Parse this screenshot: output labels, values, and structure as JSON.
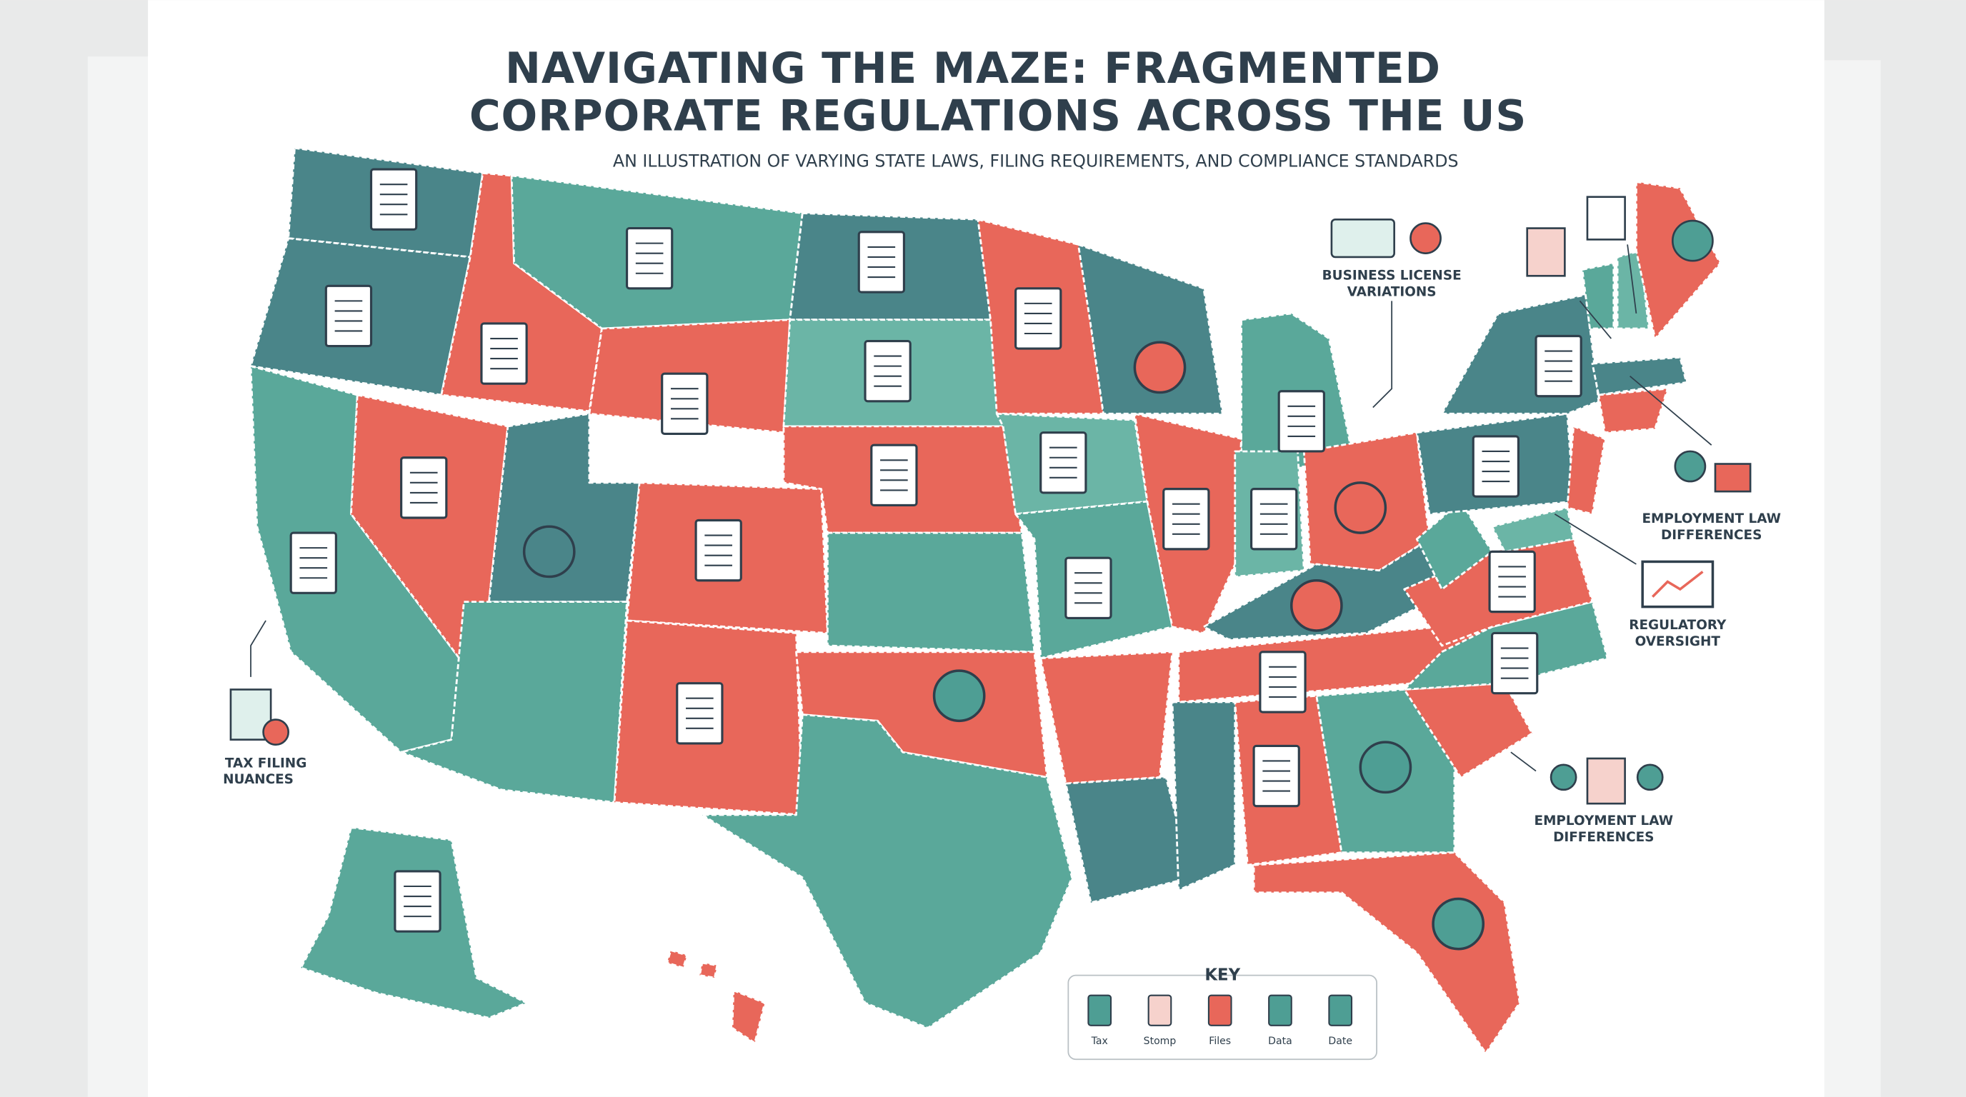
{
  "header": {
    "title_lines": [
      "NAVIGATING THE MAZE: FRAGMENTED",
      "CORPORATE REGULATIONS ACROSS THE US"
    ],
    "subtitle": "AN ILLUSTRATION OF VARYING STATE LAWS, FILING REQUIREMENTS, AND COMPLIANCE STANDARDS"
  },
  "callouts": [
    {
      "lines": [
        "BUSINESS LICENSE",
        "VARIATIONS"
      ]
    },
    {
      "lines": [
        "EMPLOYMENT LAW",
        "DIFFERENCES"
      ]
    },
    {
      "lines": [
        "REGULATORY",
        "OVERSIGHT"
      ]
    },
    {
      "lines": [
        "EMPLOYMENT LAW",
        "DIFFERENCES"
      ]
    },
    {
      "lines": [
        "TAX FILING",
        "NUANCES"
      ]
    }
  ],
  "key": {
    "title": "KEY",
    "items": [
      "Tax",
      "Stomp",
      "Files",
      "Data",
      "Date"
    ]
  }
}
